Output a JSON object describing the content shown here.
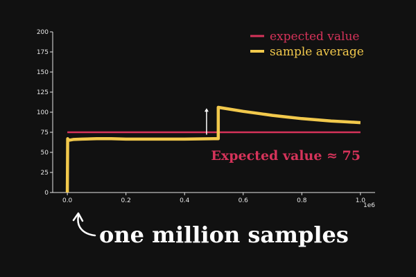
{
  "chart_data": {
    "type": "line",
    "x_multiplier_label": "1e6",
    "xlim": [
      -50000,
      1050000
    ],
    "ylim": [
      0,
      200
    ],
    "x_ticks": [
      0.0,
      0.2,
      0.4,
      0.6,
      0.8,
      1.0
    ],
    "y_ticks": [
      0,
      25,
      50,
      75,
      100,
      125,
      150,
      175,
      200
    ],
    "legend_position": "top-right",
    "series": [
      {
        "name": "expected value",
        "color": "#d6335a",
        "points": [
          [
            0,
            75
          ],
          [
            1000000,
            75
          ]
        ]
      },
      {
        "name": "sample average",
        "color": "#f2c94c",
        "points": [
          [
            0,
            0
          ],
          [
            0,
            2
          ],
          [
            1000,
            67
          ],
          [
            5000,
            65
          ],
          [
            20000,
            66
          ],
          [
            50000,
            66.5
          ],
          [
            100000,
            67
          ],
          [
            150000,
            67
          ],
          [
            200000,
            66.5
          ],
          [
            300000,
            66.5
          ],
          [
            400000,
            66.5
          ],
          [
            500000,
            67
          ],
          [
            515000,
            67
          ],
          [
            515000,
            106
          ],
          [
            550000,
            104
          ],
          [
            600000,
            101
          ],
          [
            650000,
            98.5
          ],
          [
            700000,
            96
          ],
          [
            750000,
            94
          ],
          [
            800000,
            92
          ],
          [
            850000,
            90.5
          ],
          [
            900000,
            89
          ],
          [
            950000,
            88
          ],
          [
            1000000,
            87
          ]
        ]
      }
    ],
    "annotation_arrow": {
      "x": 475000,
      "y_from": 72,
      "y_to": 105
    },
    "annotation_text": "Expected value ≈ 75"
  },
  "caption": "one million samples",
  "colors": {
    "background": "#111111",
    "axis": "#e8e8e8",
    "expected": "#d6335a",
    "average": "#f2c94c"
  }
}
